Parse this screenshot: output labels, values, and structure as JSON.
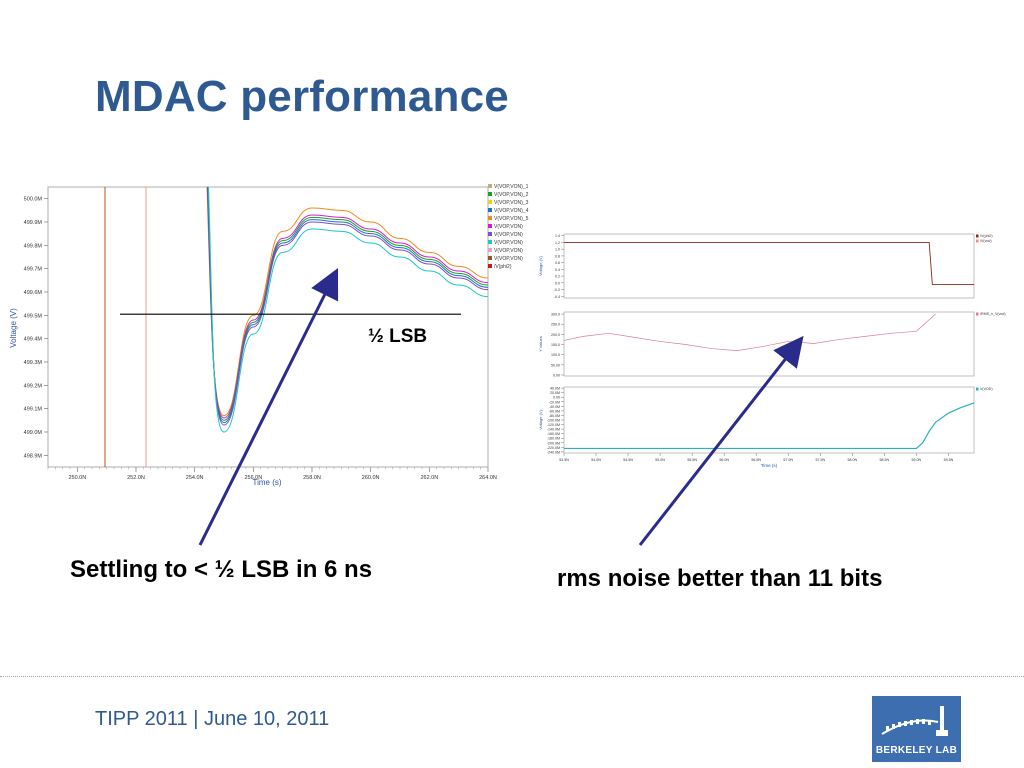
{
  "slide": {
    "title": "MDAC performance",
    "caption_left": "Settling to < ½ LSB in 6 ns",
    "caption_right": "rms noise better than 11 bits",
    "footer": "TIPP 2011 | June 10, 2011",
    "logo_text": "BERKELEY LAB"
  },
  "colors": {
    "title": "#2f5a91",
    "arrow": "#2b2b8c",
    "logo": "#3d6fb0"
  },
  "chart_data": [
    {
      "type": "line",
      "xlabel": "Time (s)",
      "ylabel": "Voltage (V)",
      "xlim": [
        249.0,
        264.0
      ],
      "ylim": [
        498.85,
        500.05
      ],
      "x_ticks": [
        "250.0N",
        "252.0N",
        "254.0N",
        "256.0N",
        "258.0N",
        "260.0N",
        "262.0N",
        "264.0N"
      ],
      "x_tick_values": [
        250,
        252,
        254,
        256,
        258,
        260,
        262,
        264
      ],
      "y_ticks": [
        "500.0M",
        "499.9M",
        "499.8M",
        "499.7M",
        "499.6M",
        "499.5M",
        "499.4M",
        "499.3M",
        "499.2M",
        "499.1M",
        "499.0M",
        "498.9M"
      ],
      "y_tick_values": [
        500.0,
        499.9,
        499.8,
        499.7,
        499.6,
        499.5,
        499.4,
        499.3,
        499.2,
        499.1,
        499.0,
        498.9
      ],
      "legend_position": "top-right",
      "legend": [
        "V(VOP,VON)_1",
        "V(VOP,VON)_2",
        "V(VOP,VON)_3",
        "V(VOP,VON)_4",
        "V(VOP,VON)_5",
        "V(VOP,VON)",
        "V(VOP,VON)",
        "V(VOP,VON)",
        "V(VOP,VON)",
        "V(VOP,VON)",
        "/V(phi2)"
      ],
      "legend_colors": [
        "#c8a97a",
        "#1aa31a",
        "#e8d21a",
        "#2470c8",
        "#f08a1a",
        "#d81ad8",
        "#7a4fc8",
        "#19c8c8",
        "#f09ac8",
        "#8a5a2a",
        "#c81a1a"
      ],
      "annotation": "½ LSB",
      "threshold": 499.505,
      "series": [
        {
          "x": [
            255.0,
            256.0,
            257.0,
            258.0,
            259.0,
            260.0,
            261.0,
            262.0,
            263.0,
            264.0
          ],
          "y": [
            499.07,
            499.5,
            499.86,
            499.96,
            499.95,
            499.9,
            499.83,
            499.77,
            499.71,
            499.66
          ]
        },
        {
          "x": [
            255.0,
            256.0,
            257.0,
            258.0,
            259.0,
            260.0,
            261.0,
            262.0,
            263.0,
            264.0
          ],
          "y": [
            499.06,
            499.48,
            499.83,
            499.93,
            499.92,
            499.87,
            499.81,
            499.75,
            499.69,
            499.64
          ]
        },
        {
          "x": [
            255.0,
            256.0,
            257.0,
            258.0,
            259.0,
            260.0,
            261.0,
            262.0,
            263.0,
            264.0
          ],
          "y": [
            499.05,
            499.47,
            499.82,
            499.92,
            499.91,
            499.86,
            499.8,
            499.74,
            499.68,
            499.63
          ]
        },
        {
          "x": [
            255.0,
            256.0,
            257.0,
            258.0,
            259.0,
            260.0,
            261.0,
            262.0,
            263.0,
            264.0
          ],
          "y": [
            499.04,
            499.46,
            499.81,
            499.91,
            499.9,
            499.85,
            499.79,
            499.73,
            499.67,
            499.62
          ]
        },
        {
          "x": [
            255.0,
            256.0,
            257.0,
            258.0,
            259.0,
            260.0,
            261.0,
            262.0,
            263.0,
            264.0
          ],
          "y": [
            499.03,
            499.45,
            499.8,
            499.9,
            499.89,
            499.84,
            499.78,
            499.72,
            499.66,
            499.61
          ]
        },
        {
          "x": [
            255.0,
            256.0,
            257.0,
            258.0,
            259.0,
            260.0,
            261.0,
            262.0,
            263.0,
            264.0
          ],
          "y": [
            499.0,
            499.42,
            499.77,
            499.87,
            499.86,
            499.81,
            499.75,
            499.69,
            499.63,
            499.58
          ]
        }
      ]
    },
    {
      "type": "line",
      "ylabel": "Voltage (V)",
      "legend": [
        "/V(phi2)",
        "/V(vod)"
      ],
      "y_ticks": [
        "1.4",
        "1.2",
        "1.0",
        "0.8",
        "0.6",
        "0.4",
        "0.2",
        "0.0",
        "-0.2",
        "-0.4"
      ],
      "y_tick_values": [
        1.4,
        1.2,
        1.0,
        0.8,
        0.6,
        0.4,
        0.2,
        0.0,
        -0.2,
        -0.4
      ],
      "ylim": [
        -0.45,
        1.45
      ],
      "xlim": [
        53.5,
        59.9
      ],
      "series": [
        {
          "x": [
            53.5,
            59.2,
            59.25,
            59.9
          ],
          "y": [
            1.2,
            1.2,
            -0.05,
            -0.05
          ]
        }
      ]
    },
    {
      "type": "line",
      "ylabel": "Y Values",
      "legend": [
        "/RMS_n_V(vod)"
      ],
      "y_ticks": [
        "300.0",
        "250.0",
        "200.0",
        "150.0",
        "100.0",
        "50.00",
        "0.00"
      ],
      "y_tick_values": [
        300,
        250,
        200,
        150,
        100,
        50,
        0
      ],
      "ylim": [
        -5,
        310
      ],
      "xlim": [
        53.5,
        59.9
      ],
      "series": [
        {
          "x": [
            53.5,
            53.8,
            54.2,
            54.6,
            55.0,
            55.4,
            55.8,
            56.2,
            56.6,
            57.0,
            57.4,
            57.8,
            58.2,
            58.6,
            59.0,
            59.3
          ],
          "y": [
            170,
            190,
            205,
            185,
            165,
            150,
            130,
            120,
            140,
            165,
            155,
            175,
            190,
            205,
            215,
            300
          ]
        }
      ]
    },
    {
      "type": "line",
      "xlabel": "Time (s)",
      "ylabel": "Voltage (V)",
      "legend": [
        "V(VOD)"
      ],
      "x_ticks": [
        "53.5N",
        "54.0N",
        "54.5N",
        "55.0N",
        "55.5N",
        "56.0N",
        "56.5N",
        "57.0N",
        "57.5N",
        "58.0N",
        "58.5N",
        "59.0N",
        "59.5N"
      ],
      "x_tick_values": [
        53.5,
        54.0,
        54.5,
        55.0,
        55.5,
        56.0,
        56.5,
        57.0,
        57.5,
        58.0,
        58.5,
        59.0,
        59.5
      ],
      "y_ticks": [
        "40.0M",
        "20.0M",
        "0.00",
        "-20.0M",
        "-40.0M",
        "-60.0M",
        "-80.0M",
        "-100.0M",
        "-120.0M",
        "-140.0M",
        "-160.0M",
        "-180.0M",
        "-200.0M",
        "-220.0M",
        "-240.0M"
      ],
      "y_tick_values": [
        40,
        20,
        0,
        -20,
        -40,
        -60,
        -80,
        -100,
        -120,
        -140,
        -160,
        -180,
        -200,
        -220,
        -240
      ],
      "ylim": [
        -245,
        45
      ],
      "xlim": [
        53.5,
        59.9
      ],
      "series": [
        {
          "x": [
            53.5,
            59.0,
            59.1,
            59.2,
            59.3,
            59.5,
            59.7,
            59.9
          ],
          "y": [
            -225,
            -225,
            -200,
            -150,
            -110,
            -70,
            -45,
            -25
          ]
        }
      ]
    }
  ]
}
